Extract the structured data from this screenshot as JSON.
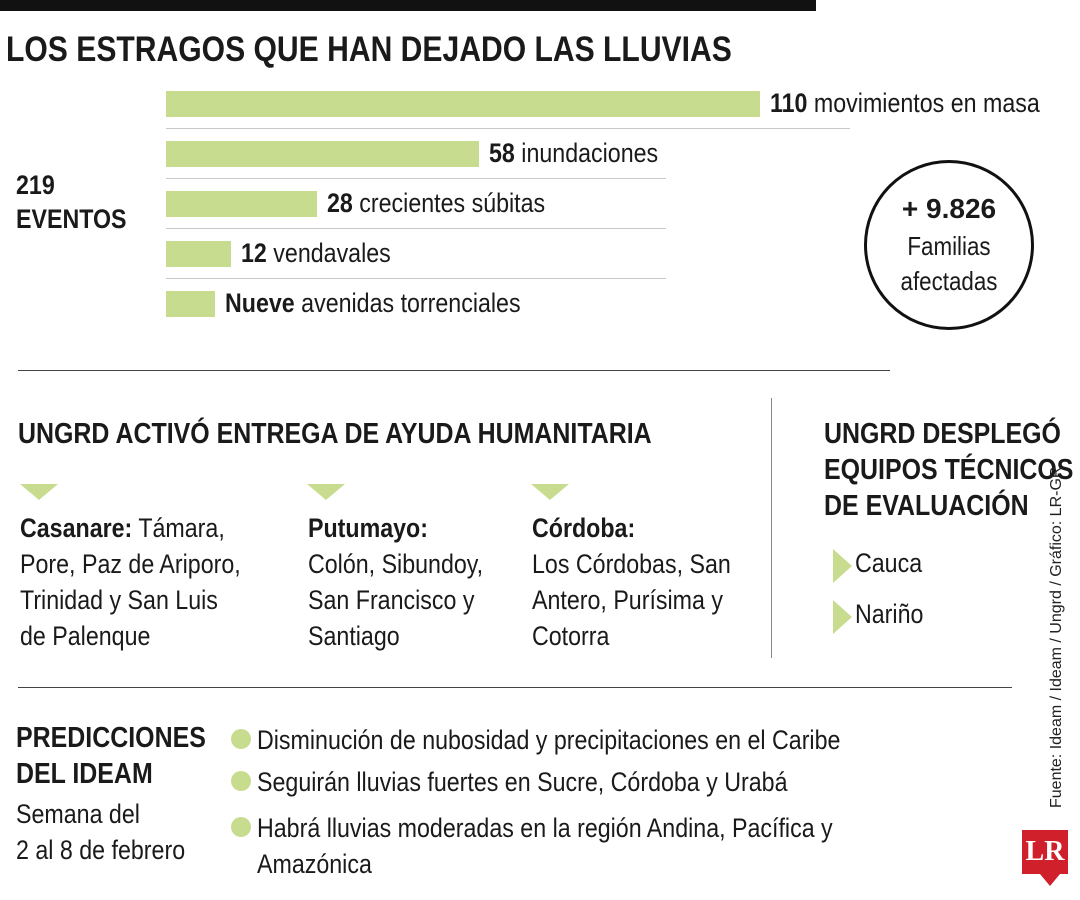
{
  "title": "LOS ESTRAGOS QUE HAN DEJADO LAS LLUVIAS",
  "total": {
    "number": "219",
    "label": "EVENTOS"
  },
  "chart_data": {
    "type": "bar",
    "orientation": "horizontal",
    "title": "LOS ESTRAGOS QUE HAN DEJADO LAS LLUVIAS",
    "categories": [
      "movimientos en masa",
      "inundaciones",
      "crecientes súbitas",
      "vendavales",
      "avenidas torrenciales"
    ],
    "value_labels": [
      "110",
      "58",
      "28",
      "12",
      "Nueve"
    ],
    "values": [
      110,
      58,
      28,
      12,
      9
    ],
    "xlim": [
      0,
      110
    ],
    "bar_color": "#c8dc8f"
  },
  "families": {
    "number": "+ 9.826",
    "line1": "Familias",
    "line2": "afectadas"
  },
  "aid": {
    "heading": "UNGRD ACTIVÓ ENTREGA DE AYUDA HUMANITARIA",
    "regions": [
      {
        "name": "Casanare:",
        "lines": [
          "Támara,",
          "Pore, Paz de Ariporo,",
          "Trinidad y San Luis",
          "de Palenque"
        ]
      },
      {
        "name": "Putumayo:",
        "lines": [
          "Colón, Sibundoy,",
          "San Francisco y",
          "Santiago"
        ]
      },
      {
        "name": "Córdoba:",
        "lines": [
          "Los Córdobas, San",
          "Antero, Purísima y",
          "Cotorra"
        ]
      }
    ]
  },
  "teams": {
    "heading": [
      "UNGRD DESPLEGÓ",
      "EQUIPOS TÉCNICOS",
      "DE EVALUACIÓN"
    ],
    "items": [
      "Cauca",
      "Nariño"
    ]
  },
  "predictions": {
    "heading": [
      "PREDICCIONES",
      "DEL IDEAM"
    ],
    "week": [
      "Semana del",
      "2 al 8 de febrero"
    ],
    "items": [
      "Disminución de nubosidad y precipitaciones en el Caribe",
      "Seguirán lluvias fuertes en Sucre, Córdoba y Urabá",
      "Habrá lluvias moderadas en la región Andina, Pacífica y",
      "Amazónica"
    ]
  },
  "source": "Fuente: Ideam / Ideam / Ungrd / Gráfico: LR-GR",
  "logo": "LR",
  "colors": {
    "accent": "#c8dc8f",
    "logo": "#d0202b"
  }
}
